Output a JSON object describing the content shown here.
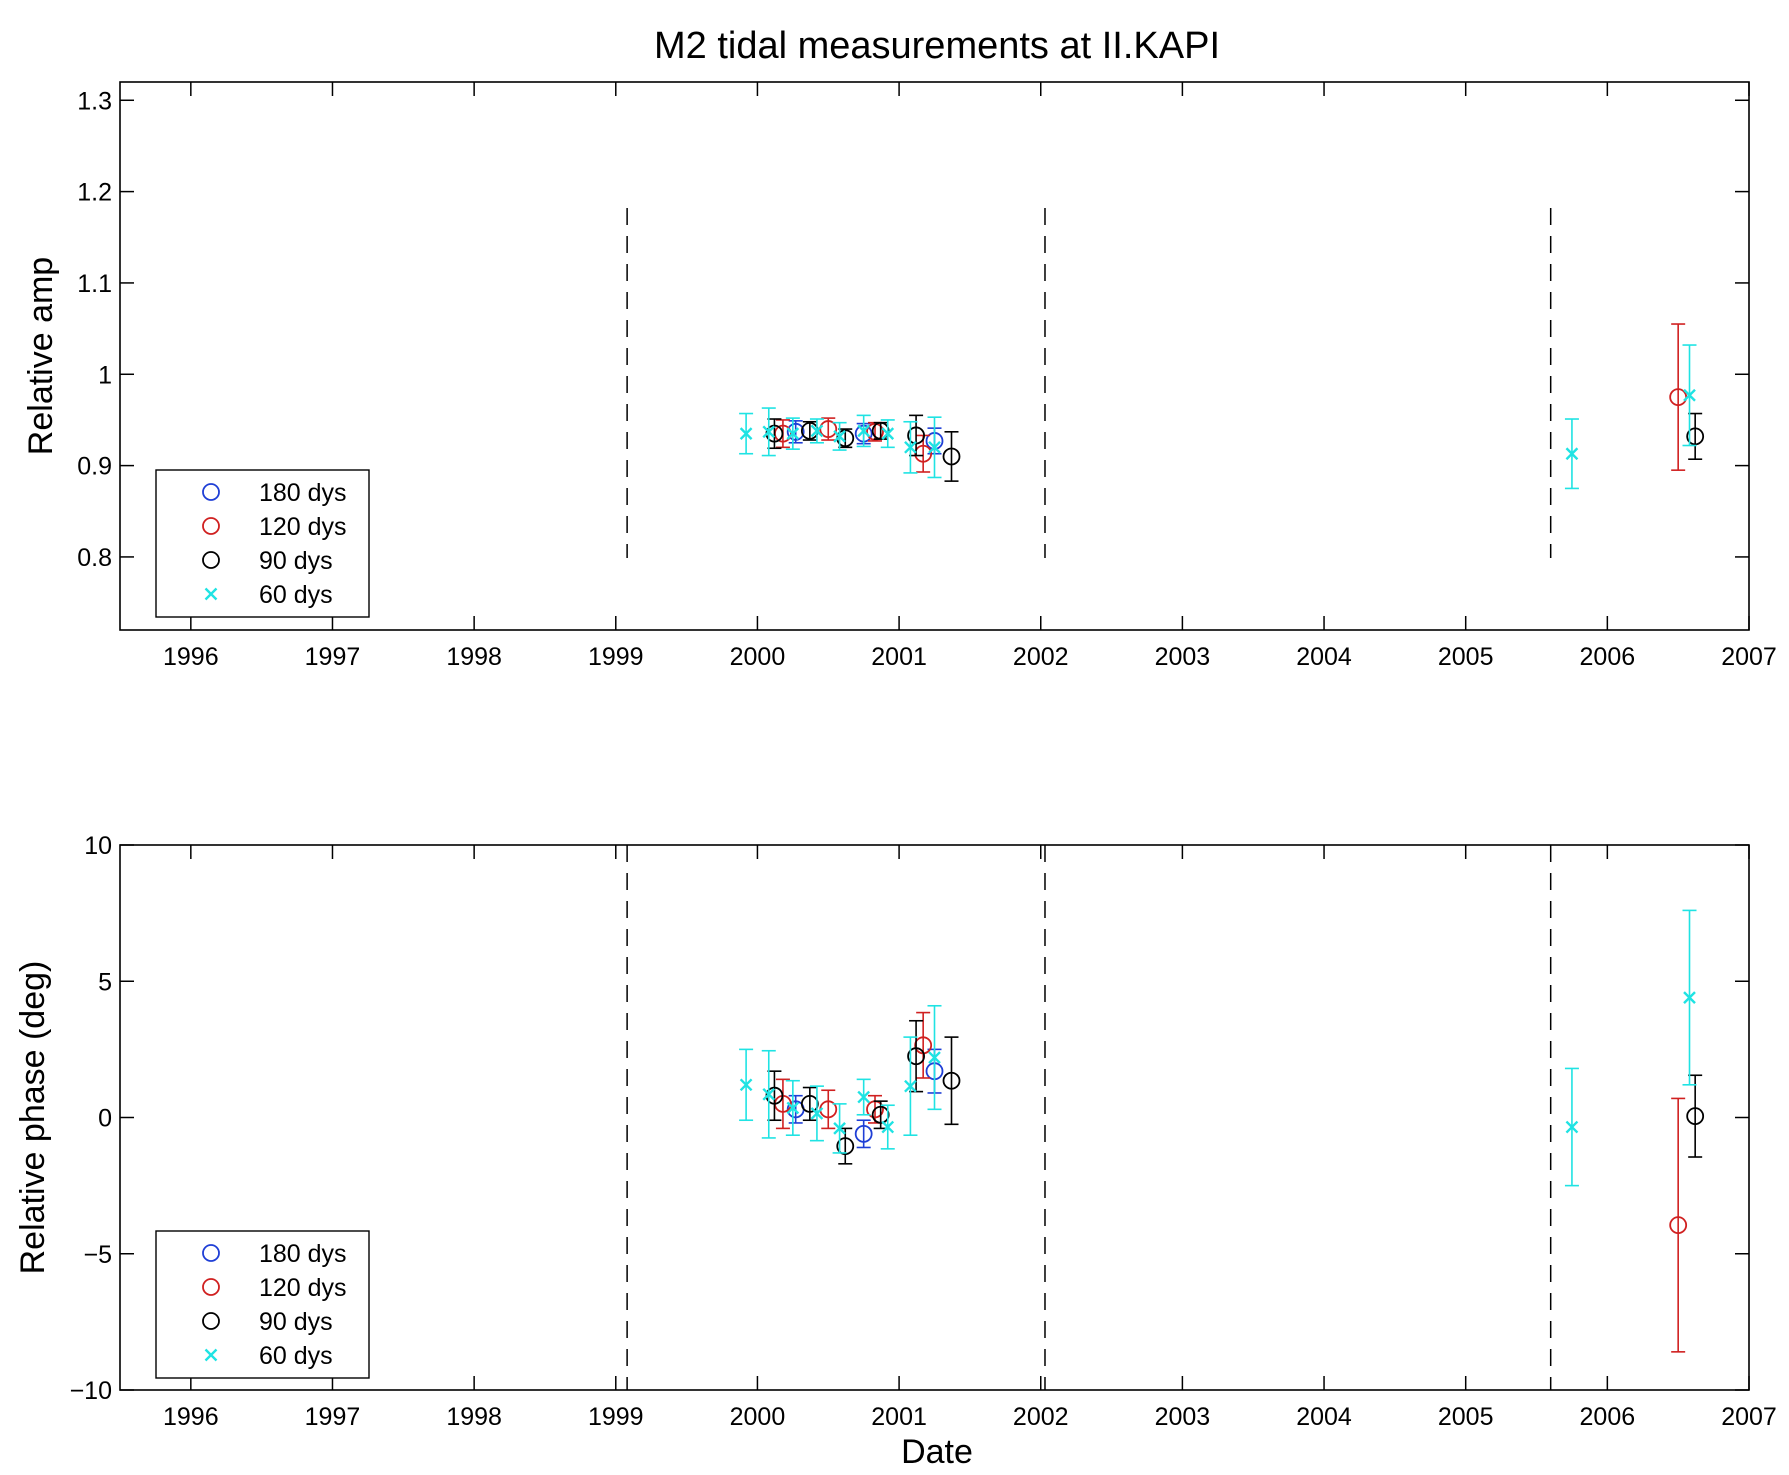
{
  "chart_data": [
    {
      "type": "scatter",
      "title": "M2 tidal measurements at II.KAPI",
      "xlabel": "",
      "ylabel": "Relative amp",
      "xlim": [
        1995.5,
        2007
      ],
      "ylim": [
        0.72,
        1.32
      ],
      "xticks": [
        1996,
        1997,
        1998,
        1999,
        2000,
        2001,
        2002,
        2003,
        2004,
        2005,
        2006,
        2007
      ],
      "xtick_labels": [
        "1996",
        "1997",
        "1998",
        "1999",
        "2000",
        "2001",
        "2002",
        "2003",
        "2004",
        "2005",
        "2006",
        "2007"
      ],
      "yticks": [
        0.8,
        0.9,
        1.0,
        1.1,
        1.2,
        1.3
      ],
      "ytick_labels": [
        "0.8",
        "0.9",
        "1",
        "1.1",
        "1.2",
        "1.3"
      ],
      "vlines": [
        1999.08,
        2002.03,
        2005.6
      ],
      "vline_range": [
        0.8,
        1.18
      ],
      "legend_position": "bottom-left",
      "series": [
        {
          "name": "180 dys",
          "color": "#1f3fd6",
          "marker": "o",
          "points": [
            [
              2000.27,
              0.937,
              0.012
            ],
            [
              2000.75,
              0.935,
              0.011
            ],
            [
              2001.25,
              0.927,
              0.014
            ]
          ]
        },
        {
          "name": "120 dys",
          "color": "#d02020",
          "marker": "o",
          "points": [
            [
              2000.18,
              0.935,
              0.015
            ],
            [
              2000.5,
              0.94,
              0.012
            ],
            [
              2000.83,
              0.937,
              0.01
            ],
            [
              2001.17,
              0.913,
              0.02
            ],
            [
              2006.5,
              0.975,
              0.08
            ]
          ]
        },
        {
          "name": "90 dys",
          "color": "#000000",
          "marker": "o",
          "points": [
            [
              2000.12,
              0.935,
              0.016
            ],
            [
              2000.37,
              0.938,
              0.01
            ],
            [
              2000.62,
              0.93,
              0.01
            ],
            [
              2000.87,
              0.938,
              0.009
            ],
            [
              2001.12,
              0.933,
              0.022
            ],
            [
              2001.37,
              0.91,
              0.027
            ],
            [
              2006.62,
              0.932,
              0.025
            ]
          ]
        },
        {
          "name": "60 dys",
          "color": "#1fe3e3",
          "marker": "x",
          "points": [
            [
              1999.92,
              0.935,
              0.022
            ],
            [
              2000.08,
              0.937,
              0.026
            ],
            [
              2000.25,
              0.935,
              0.017
            ],
            [
              2000.42,
              0.938,
              0.013
            ],
            [
              2000.58,
              0.932,
              0.015
            ],
            [
              2000.75,
              0.938,
              0.017
            ],
            [
              2000.92,
              0.935,
              0.015
            ],
            [
              2001.08,
              0.92,
              0.028
            ],
            [
              2001.25,
              0.92,
              0.033
            ],
            [
              2005.75,
              0.913,
              0.038
            ],
            [
              2006.58,
              0.977,
              0.055
            ]
          ]
        }
      ]
    },
    {
      "type": "scatter",
      "title": "",
      "xlabel": "Date",
      "ylabel": "Relative phase (deg)",
      "xlim": [
        1995.5,
        2007
      ],
      "ylim": [
        -10,
        10
      ],
      "xticks": [
        1996,
        1997,
        1998,
        1999,
        2000,
        2001,
        2002,
        2003,
        2004,
        2005,
        2006,
        2007
      ],
      "xtick_labels": [
        "1996",
        "1997",
        "1998",
        "1999",
        "2000",
        "2001",
        "2002",
        "2003",
        "2004",
        "2005",
        "2006",
        "2007"
      ],
      "yticks": [
        -10,
        -5,
        0,
        5,
        10
      ],
      "ytick_labels": [
        "−10",
        "−5",
        "0",
        "5",
        "10"
      ],
      "vlines": [
        1999.08,
        2002.03,
        2005.6
      ],
      "vline_range": [
        -10,
        10
      ],
      "legend_position": "bottom-left",
      "series": [
        {
          "name": "180 dys",
          "color": "#1f3fd6",
          "marker": "o",
          "points": [
            [
              2000.27,
              0.3,
              0.5
            ],
            [
              2000.75,
              -0.6,
              0.5
            ],
            [
              2001.25,
              1.7,
              0.8
            ]
          ]
        },
        {
          "name": "120 dys",
          "color": "#d02020",
          "marker": "o",
          "points": [
            [
              2000.18,
              0.5,
              0.9
            ],
            [
              2000.5,
              0.3,
              0.7
            ],
            [
              2000.83,
              0.3,
              0.5
            ],
            [
              2001.17,
              2.65,
              1.2
            ],
            [
              2006.5,
              -3.95,
              4.65
            ]
          ]
        },
        {
          "name": "90 dys",
          "color": "#000000",
          "marker": "o",
          "points": [
            [
              2000.12,
              0.8,
              0.9
            ],
            [
              2000.37,
              0.5,
              0.6
            ],
            [
              2000.62,
              -1.05,
              0.65
            ],
            [
              2000.87,
              0.1,
              0.5
            ],
            [
              2001.12,
              2.25,
              1.3
            ],
            [
              2001.37,
              1.35,
              1.6
            ],
            [
              2006.62,
              0.05,
              1.5
            ]
          ]
        },
        {
          "name": "60 dys",
          "color": "#1fe3e3",
          "marker": "x",
          "points": [
            [
              1999.92,
              1.2,
              1.3
            ],
            [
              2000.08,
              0.85,
              1.6
            ],
            [
              2000.25,
              0.35,
              1.0
            ],
            [
              2000.42,
              0.15,
              1.0
            ],
            [
              2000.58,
              -0.4,
              0.9
            ],
            [
              2000.75,
              0.75,
              0.65
            ],
            [
              2000.92,
              -0.35,
              0.8
            ],
            [
              2001.08,
              1.15,
              1.8
            ],
            [
              2001.25,
              2.2,
              1.9
            ],
            [
              2005.75,
              -0.35,
              2.15
            ],
            [
              2006.58,
              4.4,
              3.2
            ]
          ]
        }
      ]
    }
  ]
}
